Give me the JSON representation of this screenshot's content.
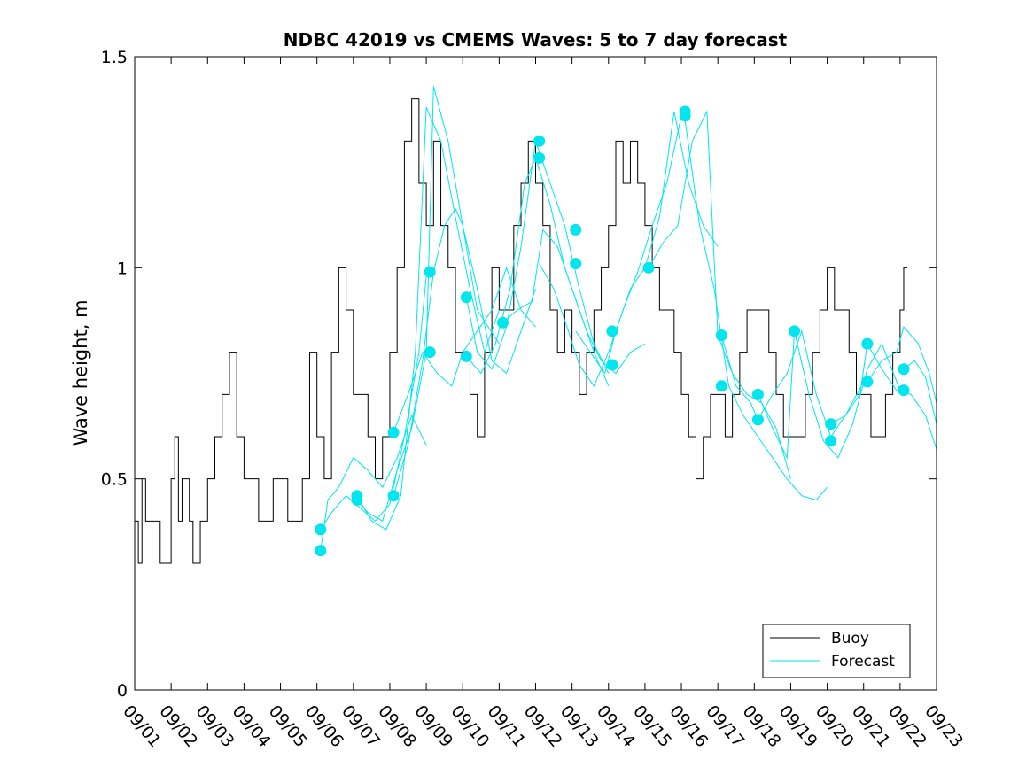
{
  "chart_data": {
    "type": "line",
    "title": "NDBC 42019 vs CMEMS Waves: 5 to 7 day forecast",
    "xlabel": "",
    "ylabel": "Wave height, m",
    "xlim": [
      0,
      22
    ],
    "ylim": [
      0,
      1.5
    ],
    "x_tick_labels": [
      "09/01",
      "09/02",
      "09/03",
      "09/04",
      "09/05",
      "09/06",
      "09/07",
      "09/08",
      "09/09",
      "09/10",
      "09/11",
      "09/12",
      "09/13",
      "09/14",
      "09/15",
      "09/16",
      "09/17",
      "09/18",
      "09/19",
      "09/20",
      "09/21",
      "09/22",
      "09/23"
    ],
    "y_ticks": [
      0,
      0.5,
      1,
      1.5
    ],
    "y_tick_labels": [
      "0",
      "0.5",
      "1",
      "1.5"
    ],
    "legend": {
      "location": "bottom-right",
      "entries": [
        "Buoy",
        "Forecast"
      ]
    },
    "colors": {
      "buoy": "#000000",
      "forecast": "#00e5ee"
    },
    "series": [
      {
        "name": "Buoy",
        "x": [
          0,
          0.1,
          0.2,
          0.3,
          0.5,
          0.7,
          0.9,
          1.0,
          1.1,
          1.2,
          1.3,
          1.5,
          1.6,
          1.8,
          2.0,
          2.2,
          2.4,
          2.6,
          2.8,
          3.0,
          3.2,
          3.4,
          3.6,
          3.8,
          4.0,
          4.2,
          4.4,
          4.6,
          4.8,
          5.0,
          5.1,
          5.2,
          5.4,
          5.6,
          5.8,
          6.0,
          6.2,
          6.4,
          6.6,
          6.8,
          7.0,
          7.2,
          7.4,
          7.6,
          7.8,
          8.0,
          8.2,
          8.4,
          8.6,
          8.8,
          9.0,
          9.2,
          9.4,
          9.6,
          9.8,
          10.0,
          10.2,
          10.4,
          10.6,
          10.8,
          11.0,
          11.2,
          11.4,
          11.6,
          11.8,
          12.0,
          12.2,
          12.4,
          12.6,
          12.8,
          13.0,
          13.2,
          13.4,
          13.6,
          13.8,
          14.0,
          14.2,
          14.4,
          14.6,
          14.8,
          15.0,
          15.2,
          15.4,
          15.6,
          15.8,
          16.0,
          16.2,
          16.4,
          16.6,
          16.8,
          17.0,
          17.2,
          17.4,
          17.6,
          17.8,
          18.0,
          18.2,
          18.4,
          18.6,
          18.8,
          19.0,
          19.2,
          19.4,
          19.6,
          19.8,
          20.0,
          20.2,
          20.4,
          20.6,
          20.8,
          21.0,
          21.1,
          21.2
        ],
        "values": [
          0.4,
          0.3,
          0.5,
          0.4,
          0.4,
          0.3,
          0.3,
          0.5,
          0.6,
          0.4,
          0.5,
          0.4,
          0.3,
          0.4,
          0.5,
          0.6,
          0.7,
          0.8,
          0.6,
          0.5,
          0.5,
          0.4,
          0.4,
          0.5,
          0.5,
          0.4,
          0.4,
          0.5,
          0.8,
          0.6,
          0.6,
          0.5,
          0.8,
          1.0,
          0.9,
          0.7,
          0.7,
          0.6,
          0.5,
          0.6,
          0.8,
          1.0,
          1.3,
          1.4,
          1.2,
          1.1,
          1.3,
          1.1,
          1.0,
          0.8,
          0.8,
          0.7,
          0.6,
          0.8,
          1.0,
          0.9,
          0.9,
          1.1,
          1.2,
          1.3,
          1.2,
          1.1,
          0.9,
          0.8,
          0.9,
          0.8,
          0.7,
          0.8,
          0.9,
          1.0,
          1.1,
          1.3,
          1.2,
          1.3,
          1.2,
          1.1,
          1.0,
          0.9,
          0.9,
          0.8,
          0.7,
          0.6,
          0.5,
          0.6,
          0.7,
          0.7,
          0.6,
          0.7,
          0.8,
          0.9,
          0.9,
          0.9,
          0.8,
          0.7,
          0.6,
          0.6,
          0.6,
          0.7,
          0.8,
          0.9,
          1.0,
          0.9,
          0.9,
          0.8,
          0.7,
          0.7,
          0.6,
          0.6,
          0.7,
          0.8,
          0.9,
          1.0,
          1.0
        ]
      },
      {
        "name": "Forecast",
        "segments": [
          {
            "x": [
              5.1,
              5.3,
              5.6,
              6.0,
              6.4,
              6.8,
              7.2,
              7.6,
              8.0
            ],
            "values": [
              0.33,
              0.45,
              0.48,
              0.55,
              0.52,
              0.48,
              0.55,
              0.65,
              0.58
            ]
          },
          {
            "x": [
              5.1,
              5.4,
              5.8,
              6.2,
              6.6,
              7.0,
              7.4,
              7.8,
              8.0
            ],
            "values": [
              0.38,
              0.42,
              0.46,
              0.43,
              0.4,
              0.44,
              0.6,
              0.8,
              0.98
            ]
          },
          {
            "x": [
              6.1,
              6.4,
              6.8,
              7.2,
              7.6,
              8.0,
              8.2,
              8.6,
              9.0,
              9.4,
              10.0
            ],
            "values": [
              0.45,
              0.42,
              0.4,
              0.52,
              0.62,
              0.8,
              1.43,
              1.3,
              1.1,
              0.9,
              0.82
            ]
          },
          {
            "x": [
              6.1,
              6.5,
              6.9,
              7.3,
              7.7,
              8.0,
              8.4,
              8.8,
              9.2,
              9.6,
              10.0
            ],
            "values": [
              0.46,
              0.4,
              0.38,
              0.46,
              0.8,
              1.38,
              1.3,
              1.12,
              0.95,
              0.8,
              0.9
            ]
          },
          {
            "x": [
              7.1,
              7.5,
              7.9,
              8.2,
              8.5,
              8.8,
              9.0,
              9.4,
              9.8,
              10.2,
              10.6,
              11.0
            ],
            "values": [
              0.46,
              0.58,
              0.78,
              0.99,
              1.1,
              1.14,
              1.1,
              0.95,
              0.78,
              0.75,
              0.85,
              0.95
            ]
          },
          {
            "x": [
              7.1,
              7.5,
              7.9,
              8.3,
              8.7,
              9.0,
              9.4,
              9.8,
              10.2,
              10.6,
              11.0
            ],
            "values": [
              0.61,
              0.7,
              0.8,
              0.75,
              0.72,
              0.8,
              0.85,
              0.9,
              1.0,
              0.9,
              0.86
            ]
          },
          {
            "x": [
              9.1,
              9.4,
              9.8,
              10.2,
              10.6,
              11.0,
              11.4,
              11.8,
              12.2,
              12.6,
              13.0
            ],
            "values": [
              0.93,
              0.8,
              0.76,
              0.86,
              1.05,
              1.3,
              1.2,
              1.1,
              0.95,
              0.82,
              0.75
            ]
          },
          {
            "x": [
              9.1,
              9.5,
              9.9,
              10.3,
              10.7,
              11.0,
              11.4,
              11.8,
              12.2,
              12.6,
              13.0
            ],
            "values": [
              0.79,
              0.75,
              0.82,
              0.95,
              1.2,
              1.26,
              1.15,
              1.0,
              0.9,
              0.8,
              0.72
            ]
          },
          {
            "x": [
              10.1,
              10.5,
              10.9,
              11.2,
              11.6,
              12.0,
              12.4,
              12.8,
              13.2,
              13.6,
              14.0
            ],
            "values": [
              0.87,
              0.9,
              0.92,
              1.09,
              1.05,
              0.95,
              0.85,
              0.78,
              0.75,
              0.8,
              0.82
            ]
          },
          {
            "x": [
              11.1,
              11.5,
              11.9,
              12.2,
              12.6,
              13.0,
              13.4,
              13.8,
              14.2,
              14.6,
              15.0
            ],
            "values": [
              1.01,
              0.95,
              0.85,
              0.77,
              0.72,
              0.8,
              0.9,
              0.99,
              1.1,
              1.2,
              1.36
            ]
          },
          {
            "x": [
              12.1,
              12.5,
              12.9,
              13.2,
              13.6,
              14.0,
              14.4,
              14.8,
              15.2,
              15.6,
              16.0
            ],
            "values": [
              0.85,
              0.8,
              0.75,
              0.85,
              0.95,
              1.0,
              1.12,
              1.37,
              1.2,
              1.1,
              1.05
            ]
          },
          {
            "x": [
              14.1,
              14.5,
              14.9,
              15.3,
              15.7,
              16.0,
              16.4,
              16.8,
              17.2,
              17.6,
              18.0
            ],
            "values": [
              1.0,
              1.06,
              1.1,
              1.3,
              1.37,
              0.84,
              0.75,
              0.7,
              0.68,
              0.62,
              0.5
            ]
          },
          {
            "x": [
              15.1,
              15.5,
              15.9,
              16.3,
              16.7,
              17.1,
              17.5,
              17.9,
              18.3,
              18.7,
              19.0
            ],
            "values": [
              1.35,
              1.1,
              0.95,
              0.72,
              0.65,
              0.6,
              0.55,
              0.5,
              0.46,
              0.45,
              0.48
            ]
          },
          {
            "x": [
              16.1,
              16.5,
              16.9,
              17.1,
              17.5,
              17.9,
              18.3,
              18.7,
              19.1,
              19.5,
              20.0
            ],
            "values": [
              0.84,
              0.72,
              0.68,
              0.64,
              0.7,
              0.75,
              0.85,
              0.7,
              0.6,
              0.65,
              0.73
            ]
          },
          {
            "x": [
              17.1,
              17.5,
              17.9,
              18.1,
              18.5,
              18.9,
              19.3,
              19.7,
              20.1,
              20.5,
              21.0
            ],
            "values": [
              0.7,
              0.62,
              0.55,
              0.85,
              0.7,
              0.59,
              0.55,
              0.63,
              0.76,
              0.82,
              0.71
            ]
          },
          {
            "x": [
              19.1,
              19.5,
              19.9,
              20.1,
              20.5,
              20.9,
              21.3,
              21.7,
              22.0
            ],
            "values": [
              0.63,
              0.65,
              0.7,
              0.82,
              0.76,
              0.71,
              0.7,
              0.65,
              0.57
            ]
          },
          {
            "x": [
              20.1,
              20.5,
              20.9,
              21.1,
              21.5,
              21.8,
              22.0
            ],
            "values": [
              0.73,
              0.78,
              0.8,
              0.86,
              0.82,
              0.75,
              0.68
            ]
          },
          {
            "x": [
              21.1,
              21.4,
              21.7,
              22.0
            ],
            "values": [
              0.76,
              0.78,
              0.74,
              0.63
            ]
          }
        ],
        "markers": {
          "x": [
            5.1,
            5.1,
            6.1,
            6.1,
            7.1,
            7.1,
            8.1,
            8.1,
            9.1,
            9.1,
            10.1,
            11.1,
            11.1,
            12.1,
            12.1,
            13.1,
            13.1,
            14.1,
            15.1,
            15.1,
            16.1,
            16.1,
            17.1,
            17.1,
            18.1,
            19.1,
            19.1,
            20.1,
            20.1,
            21.1,
            21.1
          ],
          "values": [
            0.33,
            0.38,
            0.45,
            0.46,
            0.46,
            0.61,
            0.99,
            0.8,
            0.93,
            0.79,
            0.87,
            1.3,
            1.26,
            1.09,
            1.01,
            0.85,
            0.77,
            1.0,
            1.36,
            1.37,
            0.84,
            0.72,
            0.7,
            0.64,
            0.85,
            0.63,
            0.59,
            0.82,
            0.73,
            0.76,
            0.71
          ]
        }
      }
    ]
  }
}
